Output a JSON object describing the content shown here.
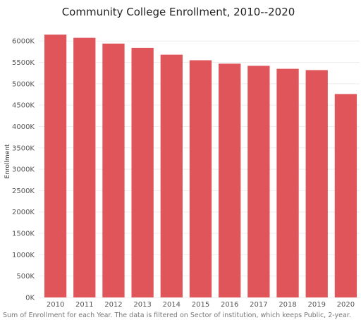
{
  "chart_data": {
    "type": "bar",
    "title": "Community College Enrollment, 2010--2020",
    "ylabel": "Enrollment",
    "xlabel": "",
    "categories": [
      "2010",
      "2011",
      "2012",
      "2013",
      "2014",
      "2015",
      "2016",
      "2017",
      "2018",
      "2019",
      "2020"
    ],
    "values": [
      6150000,
      6075000,
      5940000,
      5840000,
      5680000,
      5550000,
      5470000,
      5420000,
      5350000,
      5320000,
      4760000
    ],
    "ylim": [
      0,
      6300000
    ],
    "yticks": [
      0,
      500000,
      1000000,
      1500000,
      2000000,
      2500000,
      3000000,
      3500000,
      4000000,
      4500000,
      5000000,
      5500000,
      6000000
    ],
    "ytick_labels": [
      "0K",
      "500K",
      "1000K",
      "1500K",
      "2000K",
      "2500K",
      "3000K",
      "3500K",
      "4000K",
      "4500K",
      "5000K",
      "5500K",
      "6000K"
    ],
    "bar_color": "#e0555a",
    "grid": true,
    "legend": "none",
    "caption": "Sum of Enrollment for each Year. The data is filtered on Sector of institution, which keeps Public, 2-year."
  }
}
